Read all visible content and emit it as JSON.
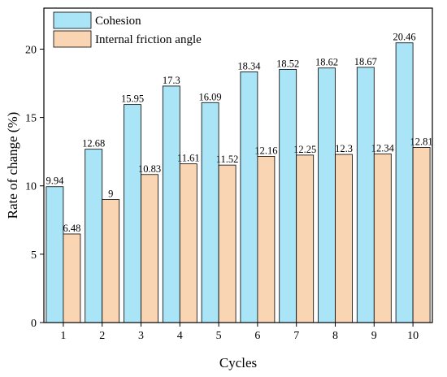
{
  "chart_data": {
    "type": "bar",
    "categories": [
      "1",
      "2",
      "3",
      "4",
      "5",
      "6",
      "7",
      "8",
      "9",
      "10"
    ],
    "series": [
      {
        "name": "Cohesion",
        "color": "#a9e4f7",
        "values": [
          9.94,
          12.68,
          15.95,
          17.3,
          16.09,
          18.34,
          18.52,
          18.62,
          18.67,
          20.46
        ],
        "labels": [
          "9.94",
          "12.68",
          "15.95",
          "17.3",
          "16.09",
          "18.34",
          "18.52",
          "18.62",
          "18.67",
          "20.46"
        ]
      },
      {
        "name": "Internal friction angle",
        "color": "#fad5b3",
        "values": [
          6.48,
          9,
          10.83,
          11.61,
          11.52,
          12.16,
          12.25,
          12.3,
          12.34,
          12.81
        ],
        "labels": [
          "6.48",
          "9",
          "10.83",
          "11.61",
          "11.52",
          "12.16",
          "12.25",
          "12.3",
          "12.34",
          "12.81"
        ]
      }
    ],
    "xlabel": "Cycles",
    "ylabel": "Rate of change (%)",
    "ylim": [
      0,
      23
    ],
    "yticks": [
      0,
      5,
      10,
      15,
      20
    ],
    "grid": false,
    "legend_position": "top-left"
  }
}
